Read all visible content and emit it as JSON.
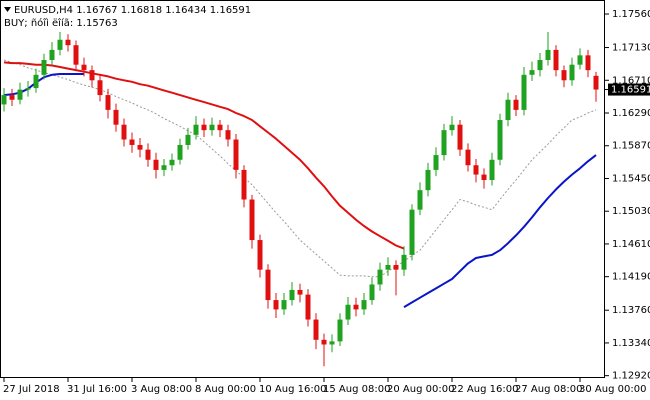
{
  "chart_data": {
    "type": "candlestick",
    "title": "EURUSD,H4  1.16767 1.16818 1.16434 1.16591",
    "subtitle": "BUY; ñóîì ëîíã: 1.15763",
    "categories": [
      "27 Jul 2018",
      null,
      null,
      null,
      null,
      null,
      null,
      null,
      "31 Jul 16:00",
      null,
      null,
      null,
      null,
      null,
      null,
      null,
      "3 Aug 08:00",
      null,
      null,
      null,
      null,
      null,
      null,
      null,
      "8 Aug 00:00",
      null,
      null,
      null,
      null,
      null,
      null,
      null,
      "10 Aug 16:00",
      null,
      null,
      null,
      null,
      null,
      null,
      null,
      "15 Aug 08:00",
      null,
      null,
      null,
      null,
      null,
      null,
      null,
      "20 Aug 00:00",
      null,
      null,
      null,
      null,
      null,
      null,
      null,
      "22 Aug 16:00",
      null,
      null,
      null,
      null,
      null,
      null,
      null,
      "27 Aug 08:00",
      null,
      null,
      null,
      null,
      null,
      null,
      null,
      "30 Aug 00:00",
      null,
      null
    ],
    "open": [
      1.164,
      1.1652,
      1.1646,
      1.1659,
      1.1661,
      1.1678,
      1.1697,
      1.171,
      1.1723,
      1.1716,
      1.1691,
      1.1684,
      1.1671,
      1.1652,
      1.1633,
      1.1614,
      1.1595,
      1.1588,
      1.1582,
      1.1569,
      1.1556,
      1.1562,
      1.1569,
      1.1588,
      1.1601,
      1.1614,
      1.1607,
      1.1614,
      1.1607,
      1.1595,
      1.1556,
      1.1518,
      1.1466,
      1.1428,
      1.1389,
      1.1377,
      1.1389,
      1.1402,
      1.1396,
      1.1364,
      1.1338,
      1.1332,
      1.1336,
      1.1364,
      1.1383,
      1.1377,
      1.1389,
      1.1409,
      1.1428,
      1.1434,
      1.1428,
      1.1447,
      1.1505,
      1.153,
      1.1556,
      1.1575,
      1.1607,
      1.1614,
      1.1582,
      1.1562,
      1.155,
      1.1543,
      1.1569,
      1.162,
      1.1646,
      1.1633,
      1.1678,
      1.1684,
      1.1697,
      1.171,
      1.1684,
      1.1671,
      1.1691,
      1.1703,
      1.16767
    ],
    "high": [
      1.1661,
      1.166,
      1.1668,
      1.167,
      1.1686,
      1.1705,
      1.172,
      1.1733,
      1.173,
      1.1722,
      1.17,
      1.169,
      1.1678,
      1.166,
      1.1641,
      1.1622,
      1.1604,
      1.1597,
      1.159,
      1.1578,
      1.157,
      1.1577,
      1.1596,
      1.161,
      1.1625,
      1.1622,
      1.1623,
      1.162,
      1.1614,
      1.1602,
      1.1562,
      1.1524,
      1.1473,
      1.1435,
      1.1398,
      1.1398,
      1.1412,
      1.141,
      1.1403,
      1.1372,
      1.1346,
      1.1345,
      1.1372,
      1.1393,
      1.1392,
      1.1398,
      1.1418,
      1.1437,
      1.1444,
      1.144,
      1.1458,
      1.1512,
      1.154,
      1.1565,
      1.1585,
      1.1615,
      1.1625,
      1.162,
      1.159,
      1.157,
      1.1558,
      1.1578,
      1.1628,
      1.1655,
      1.1652,
      1.1688,
      1.1695,
      1.1706,
      1.1733,
      1.1716,
      1.169,
      1.17,
      1.1712,
      1.171,
      1.16818
    ],
    "low": [
      1.1631,
      1.1638,
      1.164,
      1.165,
      1.1655,
      1.1672,
      1.169,
      1.1703,
      1.1708,
      1.1683,
      1.1676,
      1.1662,
      1.1644,
      1.1622,
      1.1605,
      1.1586,
      1.1578,
      1.1572,
      1.156,
      1.1545,
      1.1548,
      1.1555,
      1.1563,
      1.1582,
      1.1595,
      1.1598,
      1.16,
      1.1598,
      1.1586,
      1.1545,
      1.1508,
      1.1455,
      1.1418,
      1.1378,
      1.1366,
      1.137,
      1.1382,
      1.1386,
      1.1355,
      1.1326,
      1.1304,
      1.1322,
      1.133,
      1.1357,
      1.1368,
      1.137,
      1.1383,
      1.1401,
      1.142,
      1.1395,
      1.142,
      1.144,
      1.1498,
      1.1522,
      1.1548,
      1.1568,
      1.16,
      1.1574,
      1.1554,
      1.154,
      1.1532,
      1.1536,
      1.1562,
      1.1612,
      1.1625,
      1.1626,
      1.167,
      1.1676,
      1.169,
      1.1676,
      1.1662,
      1.1664,
      1.1685,
      1.1675,
      1.16434
    ],
    "close": [
      1.1652,
      1.1646,
      1.1659,
      1.1661,
      1.1678,
      1.1697,
      1.171,
      1.1723,
      1.1716,
      1.1691,
      1.1684,
      1.1671,
      1.1652,
      1.1633,
      1.1614,
      1.1595,
      1.1588,
      1.1582,
      1.1569,
      1.1556,
      1.1562,
      1.1569,
      1.1588,
      1.1601,
      1.1614,
      1.1607,
      1.1614,
      1.1607,
      1.1595,
      1.1556,
      1.1518,
      1.1466,
      1.1428,
      1.1389,
      1.1377,
      1.1389,
      1.1402,
      1.1396,
      1.1364,
      1.1338,
      1.1332,
      1.1336,
      1.1364,
      1.1383,
      1.1377,
      1.1389,
      1.1409,
      1.1428,
      1.1434,
      1.1428,
      1.1447,
      1.1505,
      1.153,
      1.1556,
      1.1575,
      1.1607,
      1.1614,
      1.1582,
      1.1562,
      1.155,
      1.1543,
      1.1569,
      1.162,
      1.1646,
      1.1633,
      1.1678,
      1.1684,
      1.1697,
      1.171,
      1.1684,
      1.1671,
      1.1691,
      1.1703,
      1.1684,
      1.16591
    ],
    "up_color": "#1fa21f",
    "down_color": "#e01010",
    "lines": [
      {
        "color": "#9a9a9a",
        "dashed": true,
        "width": 1,
        "values": [
          1.1697,
          1.1694,
          1.1691,
          1.1687,
          1.1684,
          1.1681,
          1.1678,
          1.1675,
          1.1672,
          1.1668,
          1.1665,
          1.1662,
          1.1659,
          1.1655,
          1.165,
          1.1646,
          1.1642,
          1.1637,
          1.1633,
          1.1628,
          1.1622,
          1.1617,
          1.1612,
          1.1606,
          1.1601,
          1.1592,
          1.1583,
          1.1574,
          1.1564,
          1.1555,
          1.1546,
          1.1537,
          1.1525,
          1.1513,
          1.1501,
          1.149,
          1.1478,
          1.1466,
          1.1457,
          1.1448,
          1.1439,
          1.143,
          1.1421,
          1.142,
          1.142,
          1.142,
          1.1419,
          1.1419,
          1.1426,
          1.1432,
          1.1439,
          1.1446,
          1.1453,
          1.1466,
          1.1479,
          1.1492,
          1.1505,
          1.1518,
          1.1515,
          1.1511,
          1.1508,
          1.1505,
          1.1518,
          1.1531,
          1.1543,
          1.1556,
          1.1569,
          1.1579,
          1.1589,
          1.16,
          1.161,
          1.162,
          1.1624,
          1.1629,
          1.1633
        ]
      },
      {
        "color": "#e01010",
        "dashed": false,
        "width": 2,
        "values": [
          1.1694,
          1.1693,
          1.1693,
          1.1692,
          1.1691,
          1.1691,
          1.169,
          1.1688,
          1.1686,
          1.1684,
          1.1682,
          1.168,
          1.1678,
          1.1676,
          1.1673,
          1.1671,
          1.1669,
          1.1666,
          1.1664,
          1.1661,
          1.1658,
          1.1655,
          1.1652,
          1.1649,
          1.1646,
          1.1643,
          1.164,
          1.1637,
          1.1634,
          1.1629,
          1.1625,
          1.162,
          1.1612,
          1.1604,
          1.1596,
          1.1587,
          1.1578,
          1.1569,
          1.1558,
          1.1546,
          1.1535,
          1.1522,
          1.151,
          1.1501,
          1.1492,
          1.1484,
          1.1477,
          1.1471,
          1.1465,
          1.1459,
          1.1455,
          null,
          null,
          null,
          null,
          null,
          null,
          null,
          null,
          null,
          null,
          null,
          null,
          null,
          null,
          null,
          null,
          null,
          null,
          null,
          null,
          null,
          null,
          null,
          null
        ]
      },
      {
        "color": "#0a14c8",
        "dashed": false,
        "width": 2,
        "values": [
          1.1652,
          1.1653,
          1.1655,
          1.166,
          1.1668,
          1.1675,
          1.1678,
          1.1679,
          1.1679,
          1.1679,
          1.1679,
          null,
          null,
          null,
          null,
          null,
          null,
          null,
          null,
          null,
          null,
          null,
          null,
          null,
          null,
          null,
          null,
          null,
          null,
          null,
          null,
          null,
          null,
          null,
          null,
          null,
          null,
          null,
          null,
          null,
          null,
          null,
          null,
          null,
          null,
          null,
          null,
          null,
          null,
          null,
          1.138,
          1.1386,
          1.1392,
          1.1398,
          1.1404,
          1.141,
          1.1416,
          1.1426,
          1.1436,
          1.1443,
          1.1445,
          1.1447,
          1.1453,
          1.1462,
          1.1472,
          1.1483,
          1.1495,
          1.1508,
          1.152,
          1.1531,
          1.1541,
          1.155,
          1.1558,
          1.1567,
          1.1575
        ]
      }
    ],
    "ylim": [
      1.1289,
      1.1774
    ],
    "yticks": [
      {
        "value": 1.1292,
        "label": "1.12920"
      },
      {
        "value": 1.1334,
        "label": "1.13340"
      },
      {
        "value": 1.1376,
        "label": "1.13760"
      },
      {
        "value": 1.1419,
        "label": "1.14190"
      },
      {
        "value": 1.1461,
        "label": "1.14610"
      },
      {
        "value": 1.1503,
        "label": "1.15030"
      },
      {
        "value": 1.1545,
        "label": "1.15450"
      },
      {
        "value": 1.1587,
        "label": "1.15870"
      },
      {
        "value": 1.1629,
        "label": "1.16290"
      },
      {
        "value": 1.1671,
        "label": "1.16710"
      },
      {
        "value": 1.1713,
        "label": "1.17130"
      },
      {
        "value": 1.1756,
        "label": "1.17560"
      }
    ],
    "grid": false
  }
}
